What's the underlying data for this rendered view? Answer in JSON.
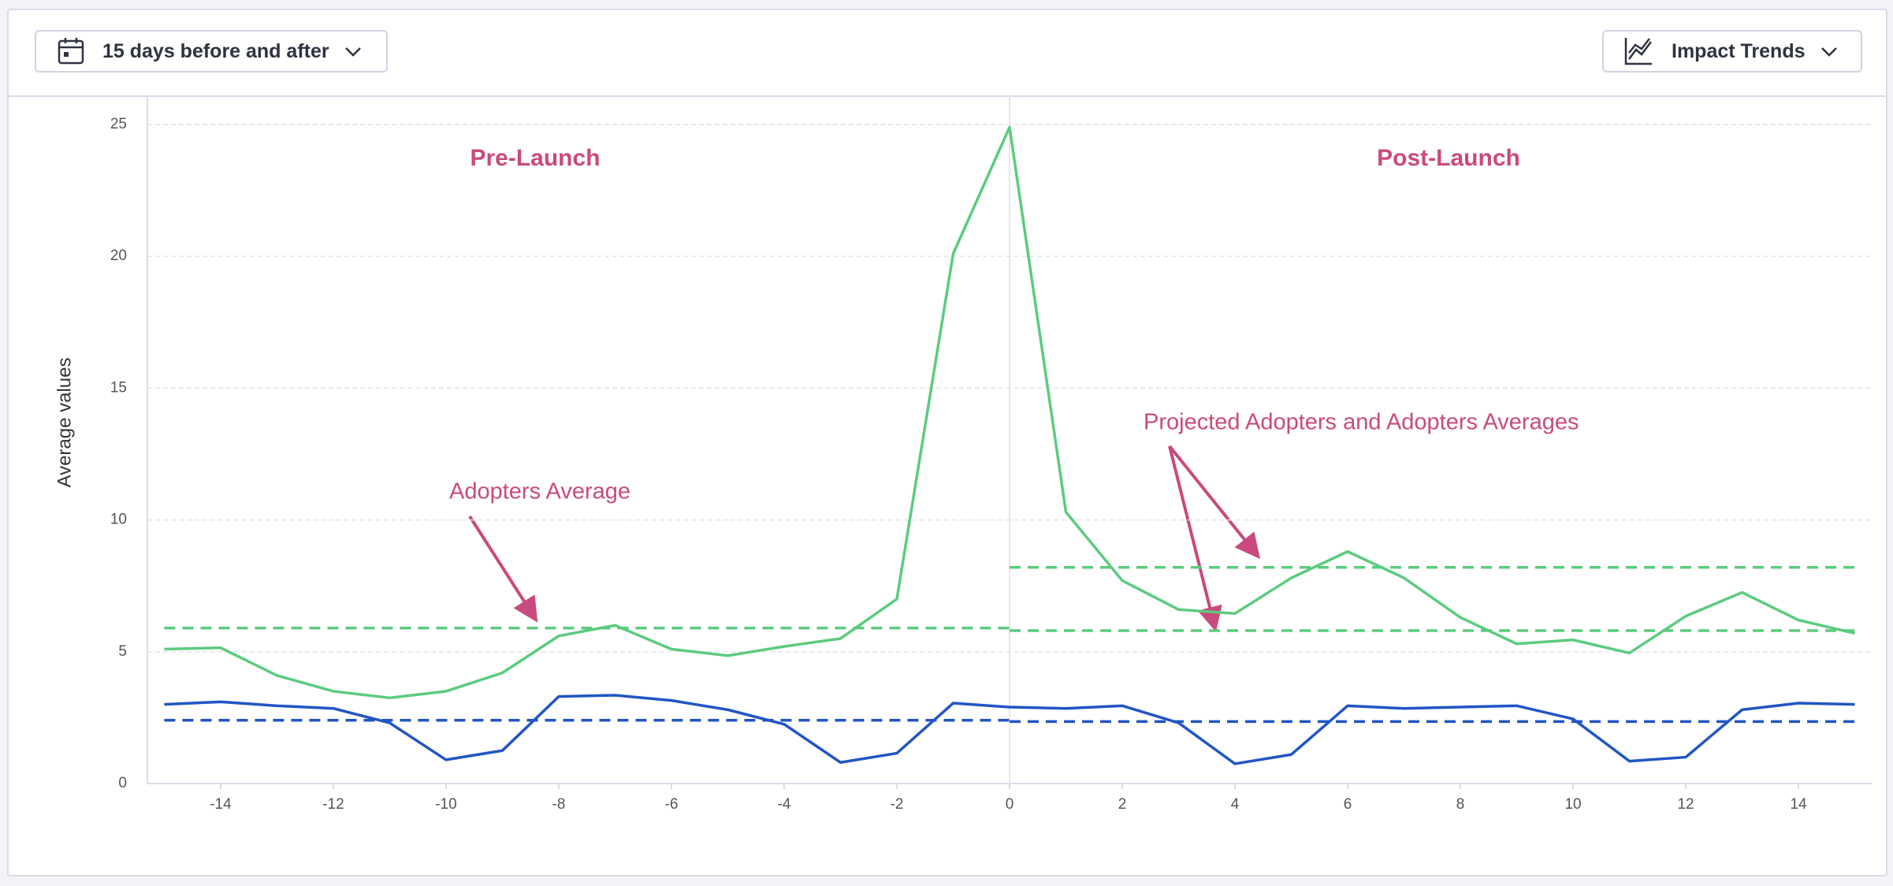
{
  "toolbar": {
    "range_selector": "15 days before and after",
    "view_selector": "Impact Trends"
  },
  "chart_data": {
    "type": "line",
    "ylabel": "Average values",
    "annotations": [
      "Pre-Launch",
      "Post-Launch",
      "Adopters Average",
      "Projected Adopters and Adopters Averages"
    ],
    "x": [
      -15,
      -14,
      -13,
      -12,
      -11,
      -10,
      -9,
      -8,
      -7,
      -6,
      -5,
      -4,
      -3,
      -2,
      -1,
      0,
      1,
      2,
      3,
      4,
      5,
      6,
      7,
      8,
      9,
      10,
      11,
      12,
      13,
      14,
      15
    ],
    "series": [
      {
        "color": "#5ccb7f",
        "values": [
          5.1,
          5.15,
          4.1,
          3.5,
          3.25,
          3.5,
          4.2,
          5.6,
          6.0,
          5.1,
          4.85,
          5.2,
          5.5,
          7.0,
          20.1,
          24.9,
          10.3,
          7.7,
          6.6,
          6.45,
          7.8,
          8.8,
          7.8,
          6.3,
          5.3,
          5.45,
          4.95,
          6.35,
          7.25,
          6.2,
          5.7
        ]
      },
      {
        "color": "#2255c4",
        "values": [
          3.0,
          3.1,
          2.95,
          2.85,
          2.3,
          0.9,
          1.25,
          3.3,
          3.35,
          3.15,
          2.8,
          2.25,
          0.8,
          1.15,
          3.05,
          2.9,
          2.85,
          2.95,
          2.3,
          0.75,
          1.1,
          2.95,
          2.85,
          2.9,
          2.95,
          2.45,
          0.85,
          1.0,
          2.8,
          3.05,
          3.0
        ]
      }
    ],
    "reference_lines": [
      {
        "x": [
          -15,
          0
        ],
        "value": 5.9,
        "color": "#5ccb7f"
      },
      {
        "x": [
          0,
          15
        ],
        "value": 8.2,
        "color": "#5ccb7f"
      },
      {
        "x": [
          0,
          15
        ],
        "value": 5.8,
        "color": "#5ccb7f"
      },
      {
        "x": [
          -15,
          0
        ],
        "value": 2.4,
        "color": "#2255c4"
      },
      {
        "x": [
          0,
          15
        ],
        "value": 2.35,
        "color": "#2255c4"
      }
    ],
    "xlim": [
      -15.3,
      15.3
    ],
    "ylim": [
      0,
      25
    ],
    "xticks": [
      -14,
      -12,
      -10,
      -8,
      -6,
      -4,
      -2,
      0,
      2,
      4,
      6,
      8,
      10,
      12,
      14
    ],
    "yticks": [
      0,
      5,
      10,
      15,
      20,
      25
    ],
    "grid": true
  }
}
